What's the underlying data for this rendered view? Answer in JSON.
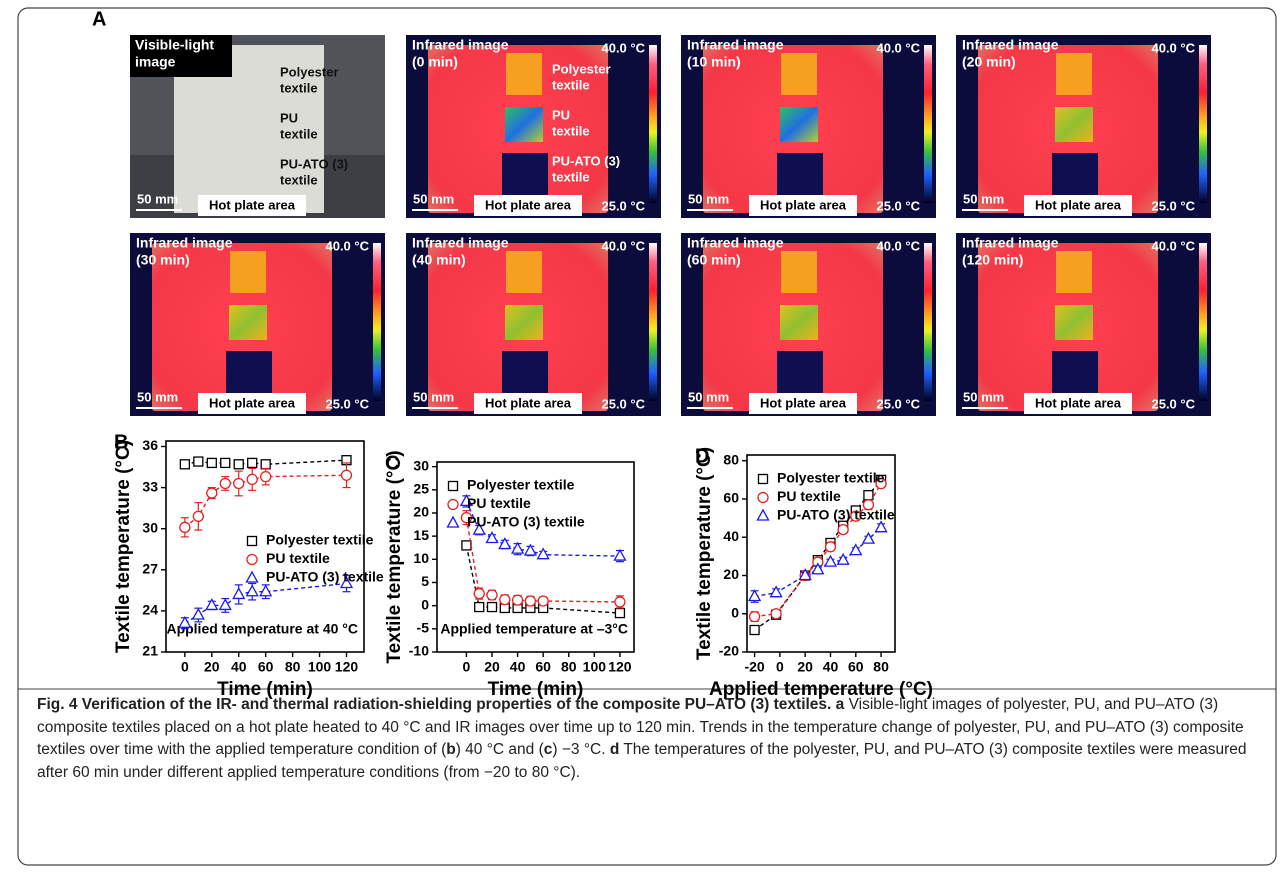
{
  "panel_a": {
    "label": "A",
    "images": [
      {
        "title": [
          "Visible-light",
          "image"
        ],
        "labels": [
          [
            "Polyester",
            "textile"
          ],
          [
            "PU",
            "textile"
          ],
          [
            "PU-ATO (3)",
            "textile"
          ]
        ],
        "scale": "50 mm",
        "area": "Hot plate area"
      },
      {
        "title": [
          "Infrared image",
          "(0 min)"
        ],
        "labels": [
          [
            "Polyester",
            "textile"
          ],
          [
            "PU",
            "textile"
          ],
          [
            "PU-ATO (3)",
            "textile"
          ]
        ],
        "max": "40.0 °C",
        "min": "25.0 °C",
        "scale": "50 mm",
        "area": "Hot plate area"
      },
      {
        "title": [
          "Infrared image",
          "(10 min)"
        ],
        "max": "40.0 °C",
        "min": "25.0 °C",
        "scale": "50 mm",
        "area": "Hot plate area"
      },
      {
        "title": [
          "Infrared image",
          "(20 min)"
        ],
        "max": "40.0 °C",
        "min": "25.0 °C",
        "scale": "50 mm",
        "area": "Hot plate area"
      },
      {
        "title": [
          "Infrared image",
          "(30 min)"
        ],
        "max": "40.0 °C",
        "min": "25.0 °C",
        "scale": "50 mm",
        "area": "Hot plate area"
      },
      {
        "title": [
          "Infrared image",
          "(40 min)"
        ],
        "max": "40.0 °C",
        "min": "25.0 °C",
        "scale": "50 mm",
        "area": "Hot plate area"
      },
      {
        "title": [
          "Infrared image",
          "(60 min)"
        ],
        "max": "40.0 °C",
        "min": "25.0 °C",
        "scale": "50 mm",
        "area": "Hot plate area"
      },
      {
        "title": [
          "Infrared image",
          "(120 min)"
        ],
        "max": "40.0 °C",
        "min": "25.0 °C",
        "scale": "50 mm",
        "area": "Hot plate area"
      }
    ]
  },
  "chart_data": [
    {
      "type": "line",
      "panel": "B",
      "x_label": "Time (min)",
      "y_label": "Textile temperature (°C)",
      "annotation": "Applied temperature at 40 °C",
      "legend": "lower right",
      "x": [
        0,
        10,
        20,
        30,
        40,
        50,
        60,
        120
      ],
      "xlim": [
        -14,
        133
      ],
      "xticks": [
        0,
        20,
        40,
        60,
        80,
        100,
        120
      ],
      "ylim": [
        21,
        36.4
      ],
      "yticks": [
        21,
        24,
        27,
        30,
        33,
        36
      ],
      "series": [
        {
          "name": "Polyester textile",
          "color": "#000000",
          "marker": "square",
          "values": [
            34.7,
            34.9,
            34.8,
            34.8,
            34.7,
            34.8,
            34.7,
            35.0
          ],
          "errors": [
            0.15,
            0.15,
            0.15,
            0.15,
            0.15,
            0.15,
            0.15,
            0.3
          ]
        },
        {
          "name": "PU textile",
          "color": "#e8201f",
          "marker": "circle",
          "values": [
            30.1,
            30.9,
            32.6,
            33.3,
            33.3,
            33.6,
            33.8,
            33.9
          ],
          "errors": [
            0.7,
            1.0,
            0.4,
            0.5,
            0.9,
            0.8,
            0.6,
            0.9
          ]
        },
        {
          "name": "PU-ATO (3) textile",
          "color": "#1a1aee",
          "marker": "triangle",
          "values": [
            23.1,
            23.7,
            24.4,
            24.4,
            25.2,
            25.4,
            25.4,
            26.0
          ],
          "errors": [
            0.4,
            0.5,
            0.3,
            0.5,
            0.7,
            0.6,
            0.5,
            0.6
          ]
        }
      ]
    },
    {
      "type": "line",
      "panel": "C",
      "x_label": "Time (min)",
      "y_label": "Textile temperature (°C)",
      "annotation": "Applied temperature at –3°C",
      "legend": "upper left",
      "x": [
        0,
        10,
        20,
        30,
        40,
        50,
        60,
        120
      ],
      "xlim": [
        -23,
        131
      ],
      "xticks": [
        0,
        20,
        40,
        60,
        80,
        100,
        120
      ],
      "ylim": [
        -10,
        31
      ],
      "yticks": [
        -10,
        -5,
        0,
        5,
        10,
        15,
        20,
        25,
        30
      ],
      "series": [
        {
          "name": "Polyester textile",
          "color": "#000000",
          "marker": "square",
          "values": [
            13,
            -0.3,
            -0.3,
            -0.5,
            -0.5,
            -0.5,
            -0.5,
            -1.6
          ],
          "errors": [
            0.4,
            0.4,
            0.3,
            0.3,
            0.3,
            0.3,
            0.3,
            0.6
          ]
        },
        {
          "name": "PU textile",
          "color": "#e8201f",
          "marker": "circle",
          "values": [
            19,
            2.6,
            2.3,
            1.3,
            1.2,
            1.0,
            1.0,
            0.8
          ],
          "errors": [
            1.5,
            1.2,
            1.0,
            1.0,
            1.0,
            1.0,
            0.8,
            1.3
          ]
        },
        {
          "name": "PU-ATO (3) textile",
          "color": "#1a1aee",
          "marker": "triangle",
          "values": [
            22.5,
            16.3,
            14.5,
            13.2,
            12.2,
            11.8,
            11.0,
            10.7
          ],
          "errors": [
            1.2,
            1.0,
            0.8,
            0.9,
            1.2,
            1.0,
            0.7,
            1.2
          ]
        }
      ]
    },
    {
      "type": "line",
      "panel": "D",
      "x_label": "Applied temperature (°C)",
      "y_label": "Textile temperature (°C)",
      "legend": "upper left",
      "x": [
        -20,
        -3,
        20,
        30,
        40,
        50,
        60,
        70,
        80
      ],
      "xlim": [
        -26,
        91
      ],
      "xticks": [
        -20,
        0,
        20,
        40,
        60,
        80
      ],
      "ylim": [
        -20,
        83
      ],
      "yticks": [
        -20,
        0,
        20,
        40,
        60,
        80
      ],
      "series": [
        {
          "name": "Polyester textile",
          "color": "#000000",
          "marker": "square",
          "values": [
            -8.5,
            -0.5,
            20,
            28,
            37,
            46,
            54,
            62,
            70
          ],
          "errors": [
            1.5,
            1.5,
            1.5,
            1.5,
            1.5,
            1.5,
            1.5,
            1.5,
            1.5
          ]
        },
        {
          "name": "PU textile",
          "color": "#e8201f",
          "marker": "circle",
          "values": [
            -1.5,
            0,
            20,
            27,
            35,
            44,
            51,
            57,
            68
          ],
          "errors": [
            2.5,
            1.5,
            1.5,
            2,
            2,
            2,
            2,
            2.5,
            2
          ]
        },
        {
          "name": "PU-ATO (3) textile",
          "color": "#1a1aee",
          "marker": "triangle",
          "values": [
            9,
            11,
            20,
            23,
            27,
            28,
            33,
            39,
            45
          ],
          "errors": [
            3,
            2,
            1.5,
            2,
            1.5,
            1.5,
            1.5,
            1.5,
            2
          ]
        }
      ]
    }
  ],
  "caption": {
    "segments": [
      {
        "text": "Fig. 4 Verification of the IR- and thermal radiation-shielding properties of the composite PU–ATO (3) textiles.",
        "bold": true
      },
      {
        "text": " "
      },
      {
        "text": "a",
        "bold": true
      },
      {
        "text": " Visible-light images of polyester, PU, and PU–ATO (3) composite textiles placed on a hot plate heated to 40 °C and IR images over time up to 120 min. Trends in the temperature change of polyester, PU, and PU–ATO (3) composite textiles over time with the applied temperature condition of ("
      },
      {
        "text": "b",
        "bold": true
      },
      {
        "text": ") 40 °C and ("
      },
      {
        "text": "c",
        "bold": true
      },
      {
        "text": ") −3 °C. "
      },
      {
        "text": "d",
        "bold": true
      },
      {
        "text": " The temperatures of the polyester, PU, and PU–ATO (3) composite textiles were measured after 60 min under different applied temperature conditions (from −20 to 80 °C)."
      }
    ]
  }
}
